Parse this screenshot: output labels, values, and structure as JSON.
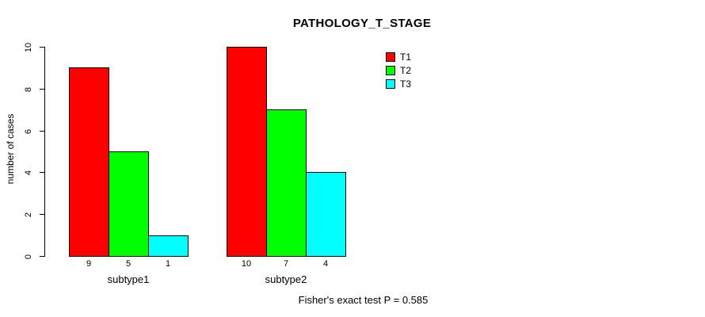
{
  "chart_data": {
    "type": "bar",
    "title": "PATHOLOGY_T_STAGE",
    "ylabel": "number of cases",
    "xlabel": "",
    "ylim": [
      0,
      10
    ],
    "yticks": [
      0,
      2,
      4,
      6,
      8,
      10
    ],
    "grid": false,
    "legend_position": "top-right",
    "categories": [
      "subtype1",
      "subtype2"
    ],
    "series": [
      {
        "name": "T1",
        "color": "#ff0000",
        "values": [
          9,
          10
        ]
      },
      {
        "name": "T2",
        "color": "#00ff00",
        "values": [
          5,
          7
        ]
      },
      {
        "name": "T3",
        "color": "#00ffff",
        "values": [
          1,
          4
        ]
      }
    ],
    "bar_value_labels": [
      [
        9,
        5,
        1
      ],
      [
        10,
        7,
        4
      ]
    ],
    "annotation": "Fisher's exact test P = 0.585",
    "axis_color": "#000000",
    "background_color": "#ffffff"
  }
}
